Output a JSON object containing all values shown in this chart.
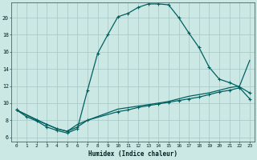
{
  "xlabel": "Humidex (Indice chaleur)",
  "bg_color": "#cce8e4",
  "grid_color": "#aacccc",
  "line_color": "#006060",
  "xlim": [
    -0.5,
    23.5
  ],
  "ylim": [
    5.5,
    21.8
  ],
  "xticks": [
    0,
    1,
    2,
    3,
    4,
    5,
    6,
    7,
    8,
    9,
    10,
    11,
    12,
    13,
    14,
    15,
    16,
    17,
    18,
    19,
    20,
    21,
    22,
    23
  ],
  "yticks": [
    6,
    8,
    10,
    12,
    14,
    16,
    18,
    20
  ],
  "curve1_x": [
    0,
    1,
    2,
    3,
    4,
    5,
    6,
    7,
    8,
    9,
    10,
    11,
    12,
    13,
    14,
    15,
    16,
    17,
    18,
    19,
    20,
    21,
    22,
    23
  ],
  "curve1_y": [
    9.2,
    8.4,
    7.9,
    7.2,
    6.8,
    6.5,
    7.0,
    11.5,
    15.8,
    18.0,
    20.1,
    20.5,
    21.2,
    21.6,
    21.6,
    21.5,
    20.0,
    18.2,
    16.5,
    14.2,
    12.8,
    12.4,
    11.9,
    11.2
  ],
  "curve2_x": [
    0,
    2,
    3,
    4,
    5,
    6,
    7,
    10,
    11,
    12,
    13,
    14,
    15,
    16,
    17,
    18,
    19,
    20,
    21,
    22,
    23
  ],
  "curve2_y": [
    9.2,
    8.0,
    7.5,
    7.0,
    6.7,
    7.2,
    8.0,
    9.0,
    9.2,
    9.5,
    9.7,
    9.9,
    10.1,
    10.3,
    10.5,
    10.7,
    11.0,
    11.3,
    11.5,
    11.8,
    10.5
  ],
  "curve3_x": [
    0,
    3,
    4,
    5,
    6,
    7,
    10,
    14,
    15,
    16,
    17,
    18,
    19,
    20,
    21,
    22,
    23
  ],
  "curve3_y": [
    9.2,
    7.5,
    7.0,
    6.7,
    7.5,
    8.0,
    9.3,
    10.0,
    10.2,
    10.5,
    10.8,
    11.0,
    11.2,
    11.5,
    11.8,
    12.0,
    15.0
  ]
}
